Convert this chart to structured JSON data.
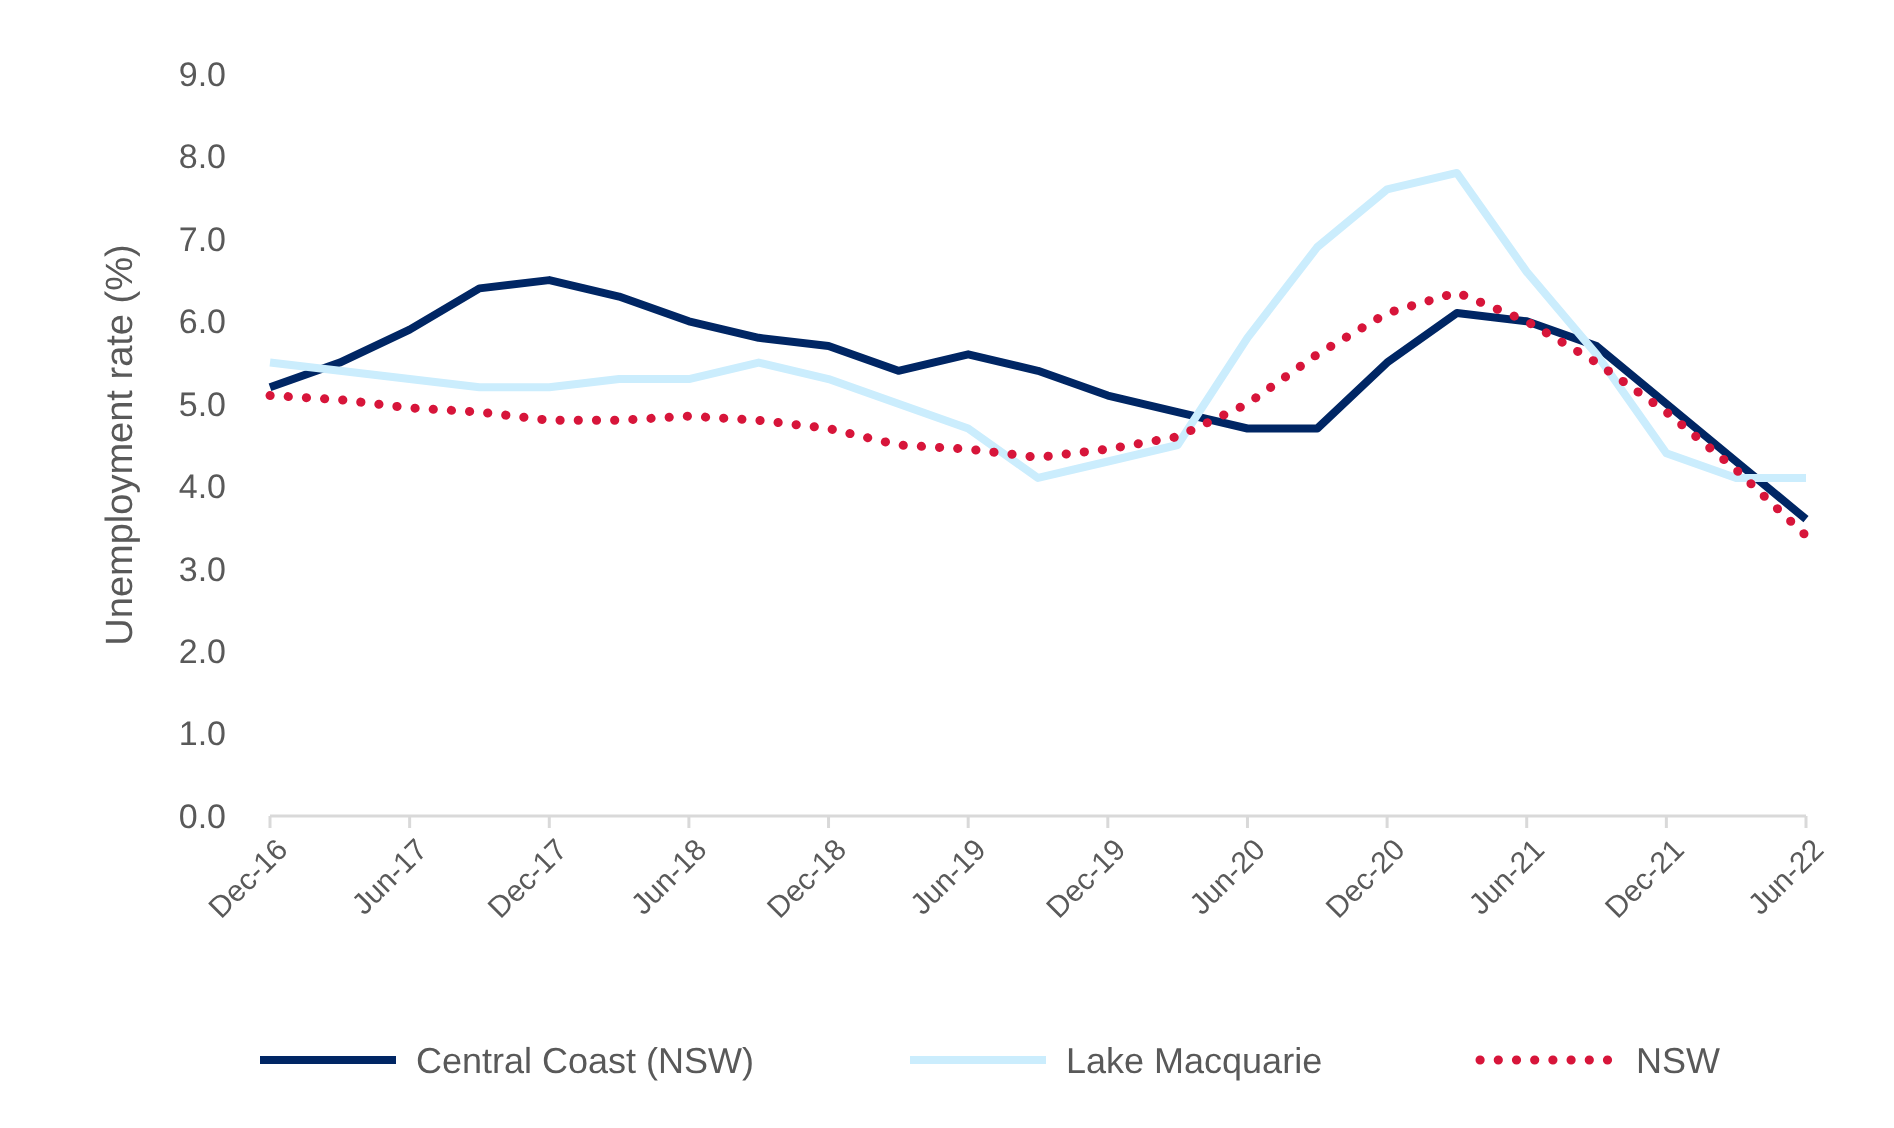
{
  "chart_data": {
    "type": "line",
    "ylabel": "Unemployment rate (%)",
    "categories": [
      "Dec-16",
      null,
      "Jun-17",
      null,
      "Dec-17",
      null,
      "Jun-18",
      null,
      "Dec-18",
      null,
      "Jun-19",
      null,
      "Dec-19",
      null,
      "Jun-20",
      null,
      "Dec-20",
      null,
      "Jun-21",
      null,
      "Dec-21",
      null,
      "Jun-22"
    ],
    "ylim": [
      0,
      9
    ],
    "yticks": [
      {
        "value": 0,
        "label": "0.0"
      },
      {
        "value": 1,
        "label": "1.0"
      },
      {
        "value": 2,
        "label": "2.0"
      },
      {
        "value": 3,
        "label": "3.0"
      },
      {
        "value": 4,
        "label": "4.0"
      },
      {
        "value": 5,
        "label": "5.0"
      },
      {
        "value": 6,
        "label": "6.0"
      },
      {
        "value": 7,
        "label": "7.0"
      },
      {
        "value": 8,
        "label": "8.0"
      },
      {
        "value": 9,
        "label": "9.0"
      }
    ],
    "grid": false,
    "legend": "bottom",
    "series": [
      {
        "name": "Central Coast (NSW)",
        "color": "#002664",
        "line_style": "solid",
        "values": [
          5.2,
          5.5,
          5.9,
          6.4,
          6.5,
          6.3,
          6.0,
          5.8,
          5.7,
          5.4,
          5.6,
          5.4,
          5.1,
          4.9,
          4.7,
          4.7,
          5.5,
          6.1,
          6.0,
          5.7,
          5.0,
          4.3,
          3.6
        ]
      },
      {
        "name": "Lake Macquarie",
        "color": "#cbedfd",
        "line_style": "solid",
        "values": [
          5.5,
          5.4,
          5.3,
          5.2,
          5.2,
          5.3,
          5.3,
          5.5,
          5.3,
          5.0,
          4.7,
          4.1,
          4.3,
          4.5,
          5.8,
          6.9,
          7.6,
          7.8,
          6.6,
          5.6,
          4.4,
          4.1,
          4.1
        ]
      },
      {
        "name": "NSW",
        "color": "#d7153a",
        "line_style": "dotted",
        "values": [
          5.1,
          5.05,
          4.95,
          4.9,
          4.8,
          4.8,
          4.85,
          4.8,
          4.7,
          4.5,
          4.45,
          4.35,
          4.45,
          4.6,
          5.0,
          5.6,
          6.1,
          6.35,
          6.0,
          5.5,
          4.9,
          4.2,
          3.4
        ]
      }
    ]
  }
}
